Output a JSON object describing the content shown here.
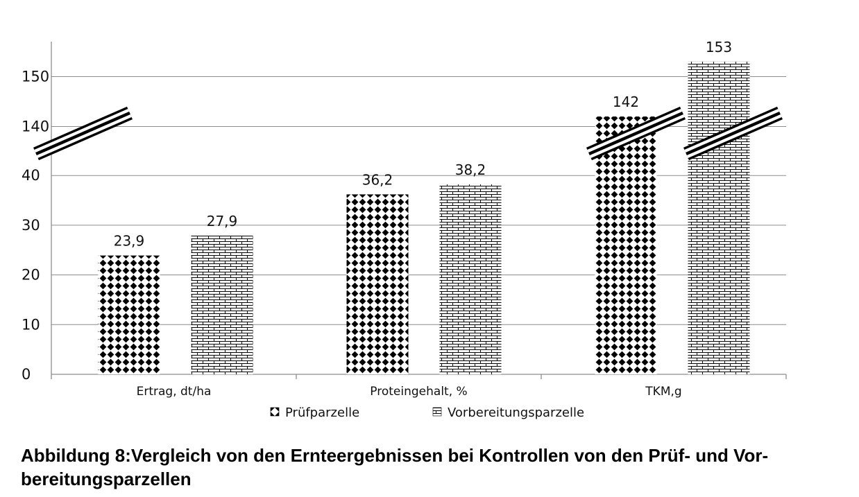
{
  "chart_data": {
    "type": "bar",
    "categories": [
      "Ertrag, dt/ha",
      "Proteingehalt, %",
      "TKM,g"
    ],
    "series": [
      {
        "name": "Prüfparzelle",
        "values": [
          23.9,
          36.2,
          142
        ],
        "labels": [
          "23,9",
          "36,2",
          "142"
        ],
        "pattern": "dots"
      },
      {
        "name": "Vorbereitungsparzelle",
        "values": [
          27.9,
          38.2,
          153
        ],
        "labels": [
          "27,9",
          "38,2",
          "153"
        ],
        "pattern": "bricks"
      }
    ],
    "yticks": [
      "0",
      "10",
      "20",
      "30",
      "40",
      "140",
      "150"
    ],
    "y_axis_break": {
      "from": 40,
      "to": 140
    },
    "ylim": [
      0,
      150
    ],
    "grid": true,
    "legend_position": "bottom",
    "title": "",
    "xlabel": "",
    "ylabel": ""
  },
  "caption": "Abbildung 8:Vergleich von den Ernteergebnissen bei Kontrollen von den Prüf- und Vor-bereitungsparzellen"
}
